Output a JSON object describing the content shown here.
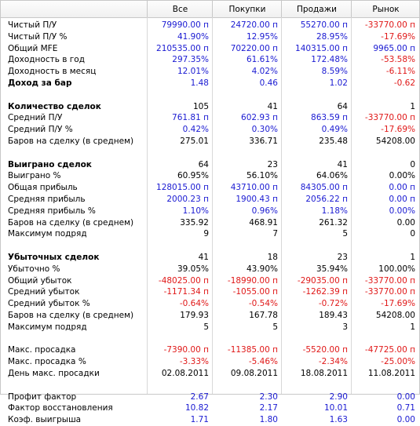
{
  "header": {
    "all": "Все",
    "buys": "Покупки",
    "sells": "Продажи",
    "market": "Рынок"
  },
  "rows": [
    {
      "label": "Чистый П/У",
      "all": "79990.00 п",
      "buys": "24720.00 п",
      "sells": "55270.00 п",
      "market": "-33770.00 п",
      "color": "blue",
      "mcolor": "red"
    },
    {
      "label": "Чистый П/У %",
      "all": "41.90%",
      "buys": "12.95%",
      "sells": "28.95%",
      "market": "-17.69%",
      "color": "blue",
      "mcolor": "red"
    },
    {
      "label": "Общий MFE",
      "all": "210535.00 п",
      "buys": "70220.00 п",
      "sells": "140315.00 п",
      "market": "9965.00 п",
      "color": "blue",
      "mcolor": "blue"
    },
    {
      "label": "Доходность в год",
      "all": "297.35%",
      "buys": "61.61%",
      "sells": "172.48%",
      "market": "-53.58%",
      "color": "blue",
      "mcolor": "red"
    },
    {
      "label": "Доходность в месяц",
      "all": "12.01%",
      "buys": "4.02%",
      "sells": "8.59%",
      "market": "-6.11%",
      "color": "blue",
      "mcolor": "red"
    },
    {
      "label": "Доход за бар",
      "all": "1.48",
      "buys": "0.46",
      "sells": "1.02",
      "market": "-0.62",
      "color": "blue",
      "mcolor": "red",
      "bold": true
    },
    {
      "spacer": true
    },
    {
      "label": "Количество сделок",
      "all": "105",
      "buys": "41",
      "sells": "64",
      "market": "1",
      "color": "black",
      "mcolor": "black",
      "bold": true
    },
    {
      "label": "Средний П/У",
      "all": "761.81 п",
      "buys": "602.93 п",
      "sells": "863.59 п",
      "market": "-33770.00 п",
      "color": "blue",
      "mcolor": "red"
    },
    {
      "label": "Средний П/У %",
      "all": "0.42%",
      "buys": "0.30%",
      "sells": "0.49%",
      "market": "-17.69%",
      "color": "blue",
      "mcolor": "red"
    },
    {
      "label": "Баров на сделку (в среднем)",
      "all": "275.01",
      "buys": "336.71",
      "sells": "235.48",
      "market": "54208.00",
      "color": "black",
      "mcolor": "black"
    },
    {
      "spacer": true
    },
    {
      "label": "Выиграно сделок",
      "all": "64",
      "buys": "23",
      "sells": "41",
      "market": "0",
      "color": "black",
      "mcolor": "black",
      "bold": true
    },
    {
      "label": "Выиграно %",
      "all": "60.95%",
      "buys": "56.10%",
      "sells": "64.06%",
      "market": "0.00%",
      "color": "black",
      "mcolor": "black"
    },
    {
      "label": "Общая прибыль",
      "all": "128015.00 п",
      "buys": "43710.00 п",
      "sells": "84305.00 п",
      "market": "0.00 п",
      "color": "blue",
      "mcolor": "blue"
    },
    {
      "label": "Средняя прибыль",
      "all": "2000.23 п",
      "buys": "1900.43 п",
      "sells": "2056.22 п",
      "market": "0.00 п",
      "color": "blue",
      "mcolor": "blue"
    },
    {
      "label": "Средняя прибыль %",
      "all": "1.10%",
      "buys": "0.96%",
      "sells": "1.18%",
      "market": "0.00%",
      "color": "blue",
      "mcolor": "blue"
    },
    {
      "label": "Баров на сделку (в среднем)",
      "all": "335.92",
      "buys": "468.91",
      "sells": "261.32",
      "market": "0.00",
      "color": "black",
      "mcolor": "black"
    },
    {
      "label": "Максимум подряд",
      "all": "9",
      "buys": "7",
      "sells": "5",
      "market": "0",
      "color": "black",
      "mcolor": "black"
    },
    {
      "spacer": true
    },
    {
      "label": "Убыточных сделок",
      "all": "41",
      "buys": "18",
      "sells": "23",
      "market": "1",
      "color": "black",
      "mcolor": "black",
      "bold": true
    },
    {
      "label": "Убыточно %",
      "all": "39.05%",
      "buys": "43.90%",
      "sells": "35.94%",
      "market": "100.00%",
      "color": "black",
      "mcolor": "black"
    },
    {
      "label": "Общий убыток",
      "all": "-48025.00 п",
      "buys": "-18990.00 п",
      "sells": "-29035.00 п",
      "market": "-33770.00 п",
      "color": "red",
      "mcolor": "red"
    },
    {
      "label": "Средний убыток",
      "all": "-1171.34 п",
      "buys": "-1055.00 п",
      "sells": "-1262.39 п",
      "market": "-33770.00 п",
      "color": "red",
      "mcolor": "red"
    },
    {
      "label": "Средний убыток %",
      "all": "-0.64%",
      "buys": "-0.54%",
      "sells": "-0.72%",
      "market": "-17.69%",
      "color": "red",
      "mcolor": "red"
    },
    {
      "label": "Баров на сделку (в среднем)",
      "all": "179.93",
      "buys": "167.78",
      "sells": "189.43",
      "market": "54208.00",
      "color": "black",
      "mcolor": "black"
    },
    {
      "label": "Максимум подряд",
      "all": "5",
      "buys": "5",
      "sells": "3",
      "market": "1",
      "color": "black",
      "mcolor": "black"
    },
    {
      "spacer": true
    },
    {
      "label": "Макс. просадка",
      "all": "-7390.00 п",
      "buys": "-11385.00 п",
      "sells": "-5520.00 п",
      "market": "-47725.00 п",
      "color": "red",
      "mcolor": "red"
    },
    {
      "label": "Макс. просадка %",
      "all": "-3.33%",
      "buys": "-5.46%",
      "sells": "-2.34%",
      "market": "-25.00%",
      "color": "red",
      "mcolor": "red"
    },
    {
      "label": "День макс. просадки",
      "all": "02.08.2011",
      "buys": "09.08.2011",
      "sells": "18.08.2011",
      "market": "11.08.2011",
      "color": "black",
      "mcolor": "black"
    },
    {
      "spacer": true
    },
    {
      "label": "Профит фактор",
      "all": "2.67",
      "buys": "2.30",
      "sells": "2.90",
      "market": "0.00",
      "color": "blue",
      "mcolor": "blue"
    },
    {
      "label": "Фактор восстановления",
      "all": "10.82",
      "buys": "2.17",
      "sells": "10.01",
      "market": "0.71",
      "color": "blue",
      "mcolor": "blue"
    },
    {
      "label": "Коэф. выигрыша",
      "all": "1.71",
      "buys": "1.80",
      "sells": "1.63",
      "market": "0.00",
      "color": "blue",
      "mcolor": "blue"
    }
  ]
}
